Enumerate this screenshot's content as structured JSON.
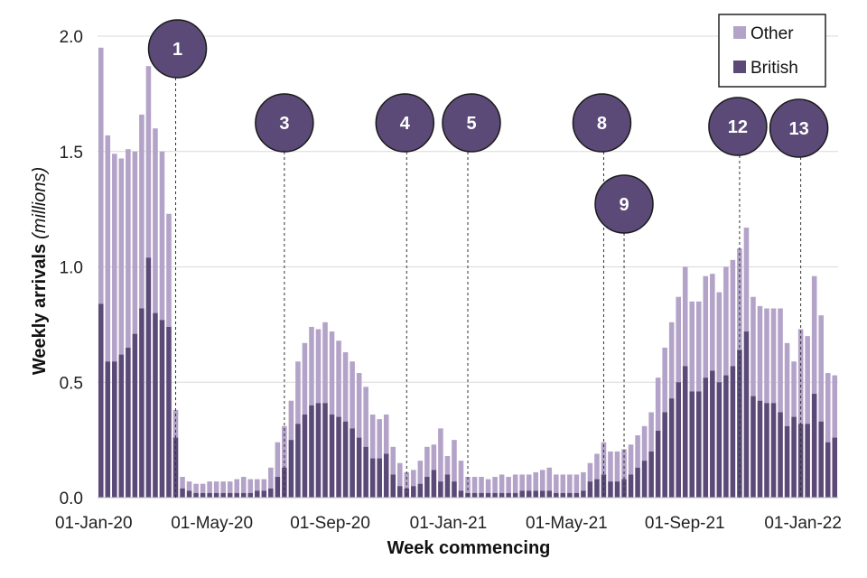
{
  "chart_data": {
    "type": "bar",
    "stacked": true,
    "xlabel": "Week commencing",
    "ylabel": "Weekly arrivals",
    "ylabel_unit": "(millions)",
    "ylim": [
      0,
      2.0
    ],
    "yticks": [
      "0.0",
      "0.5",
      "1.0",
      "1.5",
      "2.0"
    ],
    "xtick_labels": [
      "01-Jan-20",
      "01-May-20",
      "01-Sep-20",
      "01-Jan-21",
      "01-May-21",
      "01-Sep-21",
      "01-Jan-22"
    ],
    "grid": true,
    "legend_position": "top-right",
    "colors": {
      "British": "#5b4a78",
      "Other": "#b4a3c9",
      "marker": "#5b4a78"
    },
    "series": [
      {
        "name": "British",
        "values": [
          0.84,
          0.59,
          0.59,
          0.62,
          0.65,
          0.71,
          0.82,
          1.04,
          0.8,
          0.77,
          0.74,
          0.26,
          0.04,
          0.03,
          0.02,
          0.02,
          0.02,
          0.02,
          0.02,
          0.02,
          0.02,
          0.02,
          0.02,
          0.03,
          0.03,
          0.04,
          0.09,
          0.13,
          0.25,
          0.32,
          0.36,
          0.4,
          0.41,
          0.41,
          0.36,
          0.35,
          0.33,
          0.3,
          0.26,
          0.22,
          0.17,
          0.17,
          0.19,
          0.1,
          0.05,
          0.04,
          0.05,
          0.06,
          0.09,
          0.12,
          0.07,
          0.1,
          0.07,
          0.03,
          0.02,
          0.02,
          0.02,
          0.02,
          0.02,
          0.02,
          0.02,
          0.02,
          0.03,
          0.03,
          0.03,
          0.03,
          0.03,
          0.02,
          0.02,
          0.02,
          0.02,
          0.03,
          0.07,
          0.08,
          0.1,
          0.07,
          0.07,
          0.08,
          0.1,
          0.13,
          0.16,
          0.2,
          0.29,
          0.37,
          0.43,
          0.5,
          0.57,
          0.46,
          0.46,
          0.52,
          0.55,
          0.5,
          0.53,
          0.57,
          0.64,
          0.72,
          0.44,
          0.42,
          0.41,
          0.41,
          0.37,
          0.31,
          0.35,
          0.32,
          0.32,
          0.45,
          0.33,
          0.24,
          0.26
        ]
      },
      {
        "name": "Other",
        "values": [
          1.11,
          0.98,
          0.9,
          0.85,
          0.86,
          0.79,
          0.84,
          0.83,
          0.8,
          0.73,
          0.49,
          0.12,
          0.05,
          0.04,
          0.04,
          0.04,
          0.05,
          0.05,
          0.05,
          0.05,
          0.06,
          0.07,
          0.06,
          0.05,
          0.05,
          0.09,
          0.15,
          0.18,
          0.17,
          0.27,
          0.31,
          0.34,
          0.32,
          0.35,
          0.36,
          0.33,
          0.3,
          0.29,
          0.28,
          0.26,
          0.19,
          0.17,
          0.17,
          0.12,
          0.1,
          0.07,
          0.07,
          0.1,
          0.13,
          0.11,
          0.23,
          0.08,
          0.18,
          0.13,
          0.07,
          0.07,
          0.07,
          0.06,
          0.07,
          0.08,
          0.07,
          0.08,
          0.07,
          0.07,
          0.08,
          0.09,
          0.1,
          0.08,
          0.08,
          0.08,
          0.08,
          0.08,
          0.08,
          0.11,
          0.14,
          0.13,
          0.13,
          0.13,
          0.13,
          0.14,
          0.15,
          0.17,
          0.23,
          0.28,
          0.33,
          0.37,
          0.43,
          0.39,
          0.39,
          0.44,
          0.42,
          0.39,
          0.47,
          0.46,
          0.44,
          0.45,
          0.43,
          0.41,
          0.41,
          0.41,
          0.45,
          0.36,
          0.24,
          0.41,
          0.38,
          0.51,
          0.46,
          0.3,
          0.27
        ]
      }
    ],
    "annotations": [
      {
        "label": "1",
        "bar_index": 11
      },
      {
        "label": "3",
        "bar_index": 27
      },
      {
        "label": "4",
        "bar_index": 45
      },
      {
        "label": "5",
        "bar_index": 54
      },
      {
        "label": "8",
        "bar_index": 74
      },
      {
        "label": "9",
        "bar_index": 77
      },
      {
        "label": "12",
        "bar_index": 94
      },
      {
        "label": "13",
        "bar_index": 103
      }
    ]
  }
}
